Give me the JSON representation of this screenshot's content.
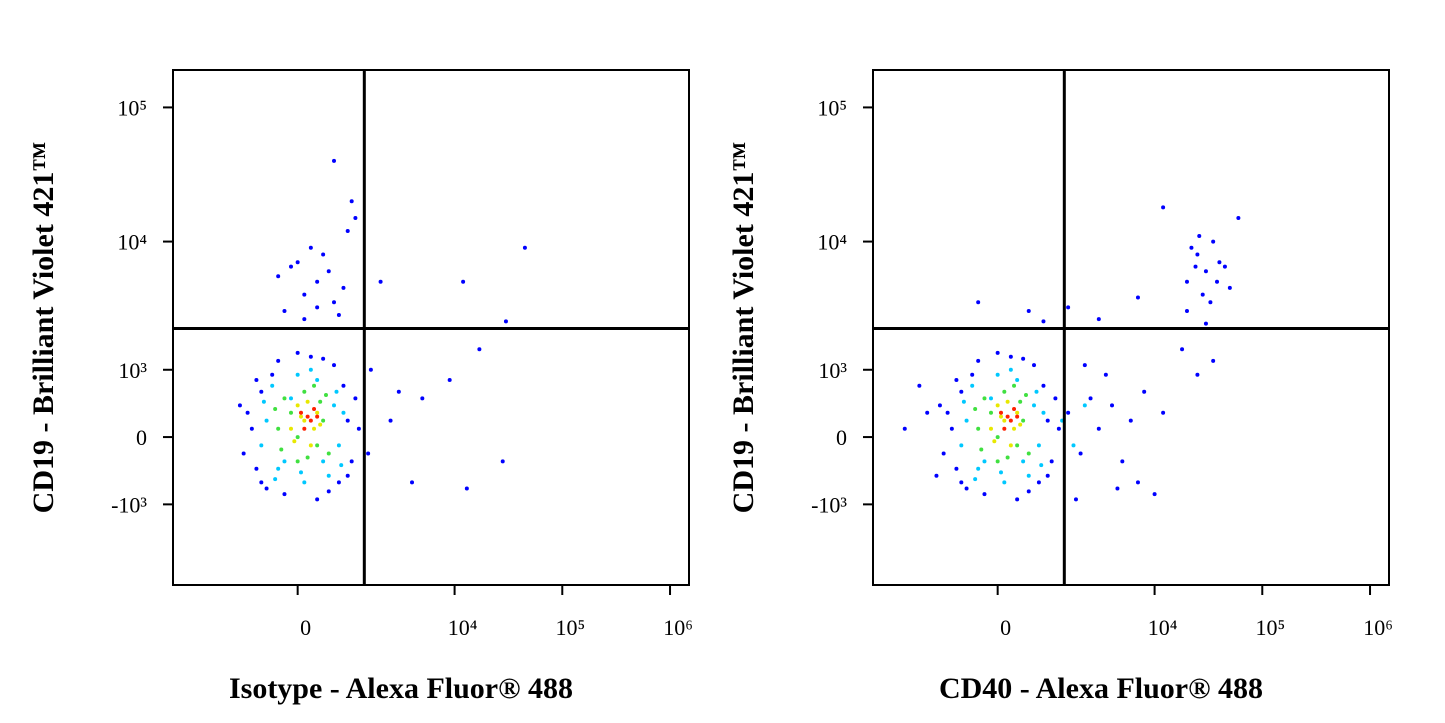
{
  "chart_data": [
    {
      "type": "scatter",
      "xlabel": "Isotype - Alexa Fluor® 488",
      "ylabel": "CD19 - Brilliant Violet 421™",
      "xscale": "biexponential",
      "yscale": "biexponential",
      "xlim": [
        -5000,
        1500000
      ],
      "ylim": [
        -4400,
        190000
      ],
      "xticks": [
        0,
        {
          "value": 10000,
          "label": "10⁴"
        },
        {
          "value": 100000,
          "label": "10⁵"
        },
        {
          "value": 1000000,
          "label": "10⁶"
        }
      ],
      "yticks": [
        {
          "value": -1000,
          "label": "-10³"
        },
        0,
        {
          "value": 1000,
          "label": "10³"
        },
        {
          "value": 10000,
          "label": "10⁴"
        },
        {
          "value": 100000,
          "label": "10⁵"
        }
      ],
      "gate": {
        "x": 1370,
        "y": 2200
      },
      "series": [
        {
          "color": "#0000ff",
          "x": [
            -800,
            -700,
            -600,
            -900,
            -500,
            900,
            1000,
            800,
            700,
            -300,
            200,
            600,
            -200,
            300,
            -1000,
            1100,
            -400,
            500,
            0,
            -700,
            900,
            1200,
            -1100,
            400,
            -600,
            -200,
            100,
            300,
            500,
            0,
            200,
            600,
            -300,
            400,
            800,
            700,
            100,
            -100,
            300,
            900,
            1100,
            600,
            1000,
            2000,
            12000,
            45000,
            30000,
            17000,
            3000,
            5000,
            9000,
            13000,
            28000,
            4000,
            2500,
            1600,
            1500
          ],
          "values": [
            100,
            -400,
            600,
            300,
            -700,
            200,
            -300,
            700,
            -600,
            1200,
            1300,
            1100,
            -800,
            -900,
            -200,
            500,
            900,
            -750,
            1400,
            800,
            -500,
            100,
            400,
            1250,
            -600,
            3000,
            4000,
            5000,
            6000,
            7000,
            9000,
            3500,
            5500,
            8000,
            4500,
            2800,
            2600,
            6500,
            3200,
            12000,
            15000,
            40000,
            20000,
            5000,
            5000,
            9000,
            2500,
            1500,
            600,
            500,
            800,
            -700,
            -300,
            -600,
            200,
            1000,
            -200
          ]
        },
        {
          "color": "#00c8ff",
          "x": [
            -500,
            600,
            -300,
            700,
            -400,
            500,
            0,
            100,
            -600,
            800,
            300,
            -200,
            400,
            -100,
            200,
            650,
            -550,
            750,
            -350,
            50
          ],
          "values": [
            200,
            400,
            -400,
            -100,
            700,
            -500,
            900,
            -600,
            -100,
            300,
            800,
            -300,
            -300,
            500,
            1000,
            600,
            450,
            -350,
            -550,
            -450
          ]
        },
        {
          "color": "#40e040",
          "x": [
            -300,
            400,
            -200,
            500,
            0,
            100,
            300,
            -250,
            350,
            -100,
            150,
            450,
            -350,
            250,
            0
          ],
          "values": [
            100,
            200,
            500,
            -200,
            -300,
            600,
            -100,
            -150,
            450,
            300,
            -250,
            550,
            350,
            700,
            0
          ]
        },
        {
          "color": "#e8e800",
          "x": [
            100,
            300,
            -100,
            200,
            0,
            250,
            150,
            -50,
            350,
            50
          ],
          "values": [
            200,
            300,
            100,
            -100,
            400,
            100,
            450,
            -50,
            150,
            250
          ]
        },
        {
          "color": "#ff2000",
          "x": [
            150,
            250,
            100,
            200,
            50,
            300
          ],
          "values": [
            250,
            350,
            100,
            200,
            300,
            250
          ]
        }
      ]
    },
    {
      "type": "scatter",
      "xlabel": "CD40 - Alexa Fluor® 488",
      "ylabel": "CD19 - Brilliant Violet 421™",
      "xscale": "biexponential",
      "yscale": "biexponential",
      "xlim": [
        -5000,
        1500000
      ],
      "ylim": [
        -4400,
        190000
      ],
      "xticks": [
        0,
        {
          "value": 10000,
          "label": "10⁴"
        },
        {
          "value": 100000,
          "label": "10⁵"
        },
        {
          "value": 1000000,
          "label": "10⁶"
        }
      ],
      "yticks": [
        {
          "value": -1000,
          "label": "-10³"
        },
        0,
        {
          "value": 1000,
          "label": "10³"
        },
        {
          "value": 10000,
          "label": "10⁴"
        },
        {
          "value": 100000,
          "label": "10⁵"
        }
      ],
      "gate": {
        "x": 1370,
        "y": 2200
      },
      "series": [
        {
          "color": "#0000ff",
          "x": [
            -800,
            -700,
            -600,
            -900,
            -500,
            900,
            1000,
            800,
            700,
            -300,
            200,
            600,
            -200,
            300,
            -1000,
            1100,
            -400,
            500,
            0,
            -700,
            900,
            1200,
            -1100,
            400,
            -600,
            1500,
            2000,
            2500,
            3000,
            4000,
            5000,
            6000,
            8000,
            3500,
            2200,
            7000,
            10000,
            12000,
            4500,
            1800,
            -1500,
            -2500,
            -1200,
            -1800,
            20000,
            25000,
            30000,
            35000,
            28000,
            40000,
            22000,
            33000,
            45000,
            26000,
            38000,
            30000,
            60000,
            12000,
            18000,
            25000,
            35000,
            20000,
            50000,
            24000,
            -300,
            500,
            1500,
            800,
            3000,
            7000
          ],
          "values": [
            100,
            -400,
            600,
            300,
            -700,
            200,
            -300,
            700,
            -600,
            1200,
            1300,
            1100,
            -800,
            -900,
            -200,
            500,
            900,
            -750,
            1400,
            800,
            -500,
            100,
            400,
            1250,
            -600,
            300,
            -200,
            500,
            100,
            400,
            -300,
            200,
            600,
            900,
            1100,
            -600,
            -800,
            300,
            -700,
            -900,
            300,
            100,
            -500,
            700,
            5000,
            8000,
            6000,
            10000,
            4000,
            7000,
            9000,
            3500,
            6500,
            11000,
            5000,
            2400,
            15000,
            18000,
            1500,
            900,
            1200,
            3000,
            4500,
            6500,
            3500,
            3000,
            3200,
            2500,
            2600,
            3800
          ]
        },
        {
          "color": "#00c8ff",
          "x": [
            -500,
            600,
            -300,
            700,
            -400,
            500,
            0,
            100,
            -600,
            800,
            300,
            -200,
            400,
            -100,
            200,
            650,
            -550,
            750,
            -350,
            50,
            1300,
            1700,
            2200
          ],
          "values": [
            200,
            400,
            -400,
            -100,
            700,
            -500,
            900,
            -600,
            -100,
            300,
            800,
            -300,
            -300,
            500,
            1000,
            600,
            450,
            -350,
            -550,
            -450,
            200,
            -100,
            400
          ]
        },
        {
          "color": "#40e040",
          "x": [
            -300,
            400,
            -200,
            500,
            0,
            100,
            300,
            -250,
            350,
            -100,
            150,
            450,
            -350,
            250,
            0
          ],
          "values": [
            100,
            200,
            500,
            -200,
            -300,
            600,
            -100,
            -150,
            450,
            300,
            -250,
            550,
            350,
            700,
            0
          ]
        },
        {
          "color": "#e8e800",
          "x": [
            100,
            300,
            -100,
            200,
            0,
            250,
            150,
            -50,
            350,
            50
          ],
          "values": [
            200,
            300,
            100,
            -100,
            400,
            100,
            450,
            -50,
            150,
            250
          ]
        },
        {
          "color": "#ff2000",
          "x": [
            150,
            250,
            100,
            200,
            50,
            300
          ],
          "values": [
            250,
            350,
            100,
            200,
            300,
            250
          ]
        }
      ]
    }
  ]
}
